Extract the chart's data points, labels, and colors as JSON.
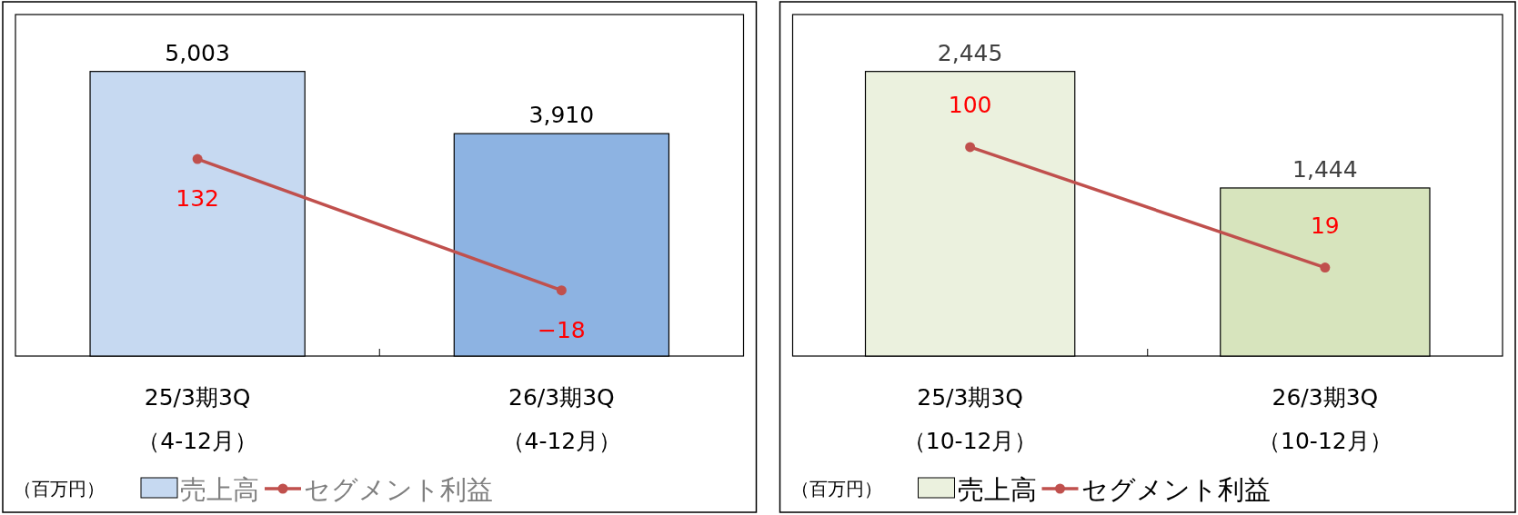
{
  "chart_data": [
    {
      "type": "bar",
      "categories": [
        "25/3期3Q\n（4-12月）",
        "26/3期3Q\n（4-12月）"
      ],
      "tick_labels": "x",
      "legend": "bottom left",
      "annotations": [
        "（百万円）"
      ],
      "series": [
        {
          "name": "売上高",
          "type": "bar",
          "colors": [
            "#c6d9f1",
            "#8db3e2"
          ],
          "values": [
            5003,
            3910
          ],
          "value_labels": [
            "5,003",
            "3,910"
          ]
        },
        {
          "name": "セグメント利益",
          "type": "line",
          "axis": "y2",
          "color": "#c0504d",
          "marker": "circle",
          "values": [
            132,
            -18
          ],
          "value_labels": [
            "132",
            "−18"
          ]
        }
      ]
    },
    {
      "type": "bar",
      "categories": [
        "25/3期3Q\n（10-12月）",
        "26/3期3Q\n（10-12月）"
      ],
      "tick_labels": "x",
      "legend": "bottom left",
      "annotations": [
        "（百万円）"
      ],
      "series": [
        {
          "name": "売上高",
          "type": "bar",
          "colors": [
            "#ebf1de",
            "#d7e4bd"
          ],
          "values": [
            2445,
            1444
          ],
          "value_labels": [
            "2,445",
            "1,444"
          ]
        },
        {
          "name": "セグメント利益",
          "type": "line",
          "axis": "y2",
          "color": "#c0504d",
          "marker": "circle",
          "values": [
            100,
            19
          ],
          "value_labels": [
            "100",
            "19"
          ]
        }
      ]
    }
  ]
}
